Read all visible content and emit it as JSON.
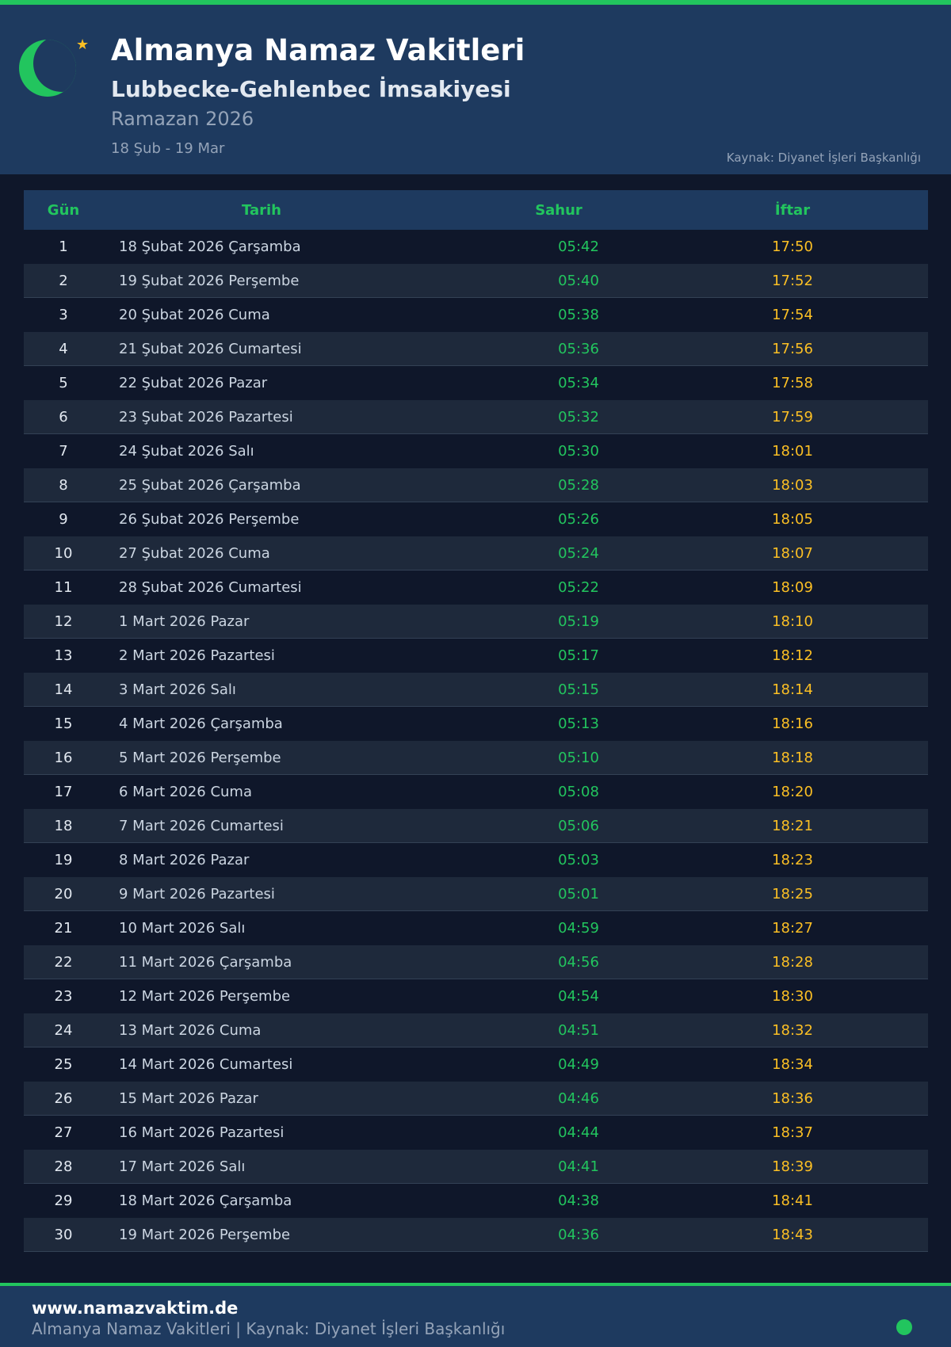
{
  "header": {
    "title": "Almanya Namaz Vakitleri",
    "subtitle": "Lubbecke-Gehlenbec İmsakiyesi",
    "period": "Ramazan 2026",
    "range": "18 Şub - 19 Mar",
    "source": "Kaynak: Diyanet İşleri Başkanlığı"
  },
  "colors": {
    "accent": "#22c55e",
    "iftar": "#fbbf24",
    "header_bg": "#1e3a5f",
    "page_bg": "#0f172a"
  },
  "table": {
    "columns": [
      "Gün",
      "Tarih",
      "Sahur",
      "İftar"
    ],
    "rows": [
      [
        "1",
        "18 Şubat 2026 Çarşamba",
        "05:42",
        "17:50"
      ],
      [
        "2",
        "19 Şubat 2026 Perşembe",
        "05:40",
        "17:52"
      ],
      [
        "3",
        "20 Şubat 2026 Cuma",
        "05:38",
        "17:54"
      ],
      [
        "4",
        "21 Şubat 2026 Cumartesi",
        "05:36",
        "17:56"
      ],
      [
        "5",
        "22 Şubat 2026 Pazar",
        "05:34",
        "17:58"
      ],
      [
        "6",
        "23 Şubat 2026 Pazartesi",
        "05:32",
        "17:59"
      ],
      [
        "7",
        "24 Şubat 2026 Salı",
        "05:30",
        "18:01"
      ],
      [
        "8",
        "25 Şubat 2026 Çarşamba",
        "05:28",
        "18:03"
      ],
      [
        "9",
        "26 Şubat 2026 Perşembe",
        "05:26",
        "18:05"
      ],
      [
        "10",
        "27 Şubat 2026 Cuma",
        "05:24",
        "18:07"
      ],
      [
        "11",
        "28 Şubat 2026 Cumartesi",
        "05:22",
        "18:09"
      ],
      [
        "12",
        "1 Mart 2026 Pazar",
        "05:19",
        "18:10"
      ],
      [
        "13",
        "2 Mart 2026 Pazartesi",
        "05:17",
        "18:12"
      ],
      [
        "14",
        "3 Mart 2026 Salı",
        "05:15",
        "18:14"
      ],
      [
        "15",
        "4 Mart 2026 Çarşamba",
        "05:13",
        "18:16"
      ],
      [
        "16",
        "5 Mart 2026 Perşembe",
        "05:10",
        "18:18"
      ],
      [
        "17",
        "6 Mart 2026 Cuma",
        "05:08",
        "18:20"
      ],
      [
        "18",
        "7 Mart 2026 Cumartesi",
        "05:06",
        "18:21"
      ],
      [
        "19",
        "8 Mart 2026 Pazar",
        "05:03",
        "18:23"
      ],
      [
        "20",
        "9 Mart 2026 Pazartesi",
        "05:01",
        "18:25"
      ],
      [
        "21",
        "10 Mart 2026 Salı",
        "04:59",
        "18:27"
      ],
      [
        "22",
        "11 Mart 2026 Çarşamba",
        "04:56",
        "18:28"
      ],
      [
        "23",
        "12 Mart 2026 Perşembe",
        "04:54",
        "18:30"
      ],
      [
        "24",
        "13 Mart 2026 Cuma",
        "04:51",
        "18:32"
      ],
      [
        "25",
        "14 Mart 2026 Cumartesi",
        "04:49",
        "18:34"
      ],
      [
        "26",
        "15 Mart 2026 Pazar",
        "04:46",
        "18:36"
      ],
      [
        "27",
        "16 Mart 2026 Pazartesi",
        "04:44",
        "18:37"
      ],
      [
        "28",
        "17 Mart 2026 Salı",
        "04:41",
        "18:39"
      ],
      [
        "29",
        "18 Mart 2026 Çarşamba",
        "04:38",
        "18:41"
      ],
      [
        "30",
        "19 Mart 2026 Perşembe",
        "04:36",
        "18:43"
      ]
    ]
  },
  "footer": {
    "site": "www.namazvaktim.de",
    "text": "Almanya Namaz Vakitleri | Kaynak: Diyanet İşleri Başkanlığı"
  }
}
